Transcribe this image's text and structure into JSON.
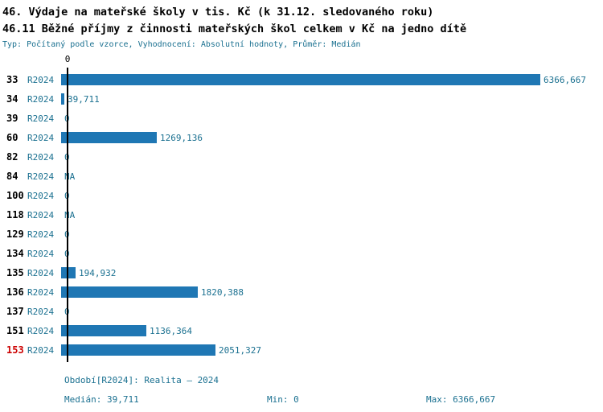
{
  "title1": "46. Výdaje na mateřské školy v tis. Kč (k 31.12. sledovaného roku)",
  "title2": "46.11 Běžné příjmy z činnosti mateřských škol celkem v Kč na jedno dítě",
  "subtitle": "Typ: Počítaný podle vzorce, Vyhodnocení: Absolutní hodnoty, Průměr: Medián",
  "chart_data": {
    "type": "bar",
    "orientation": "horizontal",
    "axis_zero_label": "0",
    "series_label": "R2024",
    "categories": [
      "33",
      "34",
      "39",
      "60",
      "82",
      "84",
      "100",
      "118",
      "129",
      "134",
      "135",
      "136",
      "137",
      "151",
      "153"
    ],
    "values": [
      6366.667,
      39.711,
      0,
      1269.136,
      0,
      null,
      0,
      null,
      0,
      0,
      194.932,
      1820.388,
      0,
      1136.364,
      2051.327
    ],
    "value_labels": [
      "6366,667",
      "39,711",
      "0",
      "1269,136",
      "0",
      "NA",
      "0",
      "NA",
      "0",
      "0",
      "194,932",
      "1820,388",
      "0",
      "1136,364",
      "2051,327"
    ],
    "xlim": [
      0,
      6366.667
    ],
    "highlight_category": "153",
    "grid": false,
    "legend": "none"
  },
  "footer": {
    "period": "Období[R2024]: Realita – 2024",
    "median": "Medián: 39,711",
    "min": "Min: 0",
    "max": "Max: 6366,667"
  },
  "colors": {
    "bar": "#1f77b4",
    "teal_text": "#1a7090",
    "highlight_row": "#cc0000"
  }
}
